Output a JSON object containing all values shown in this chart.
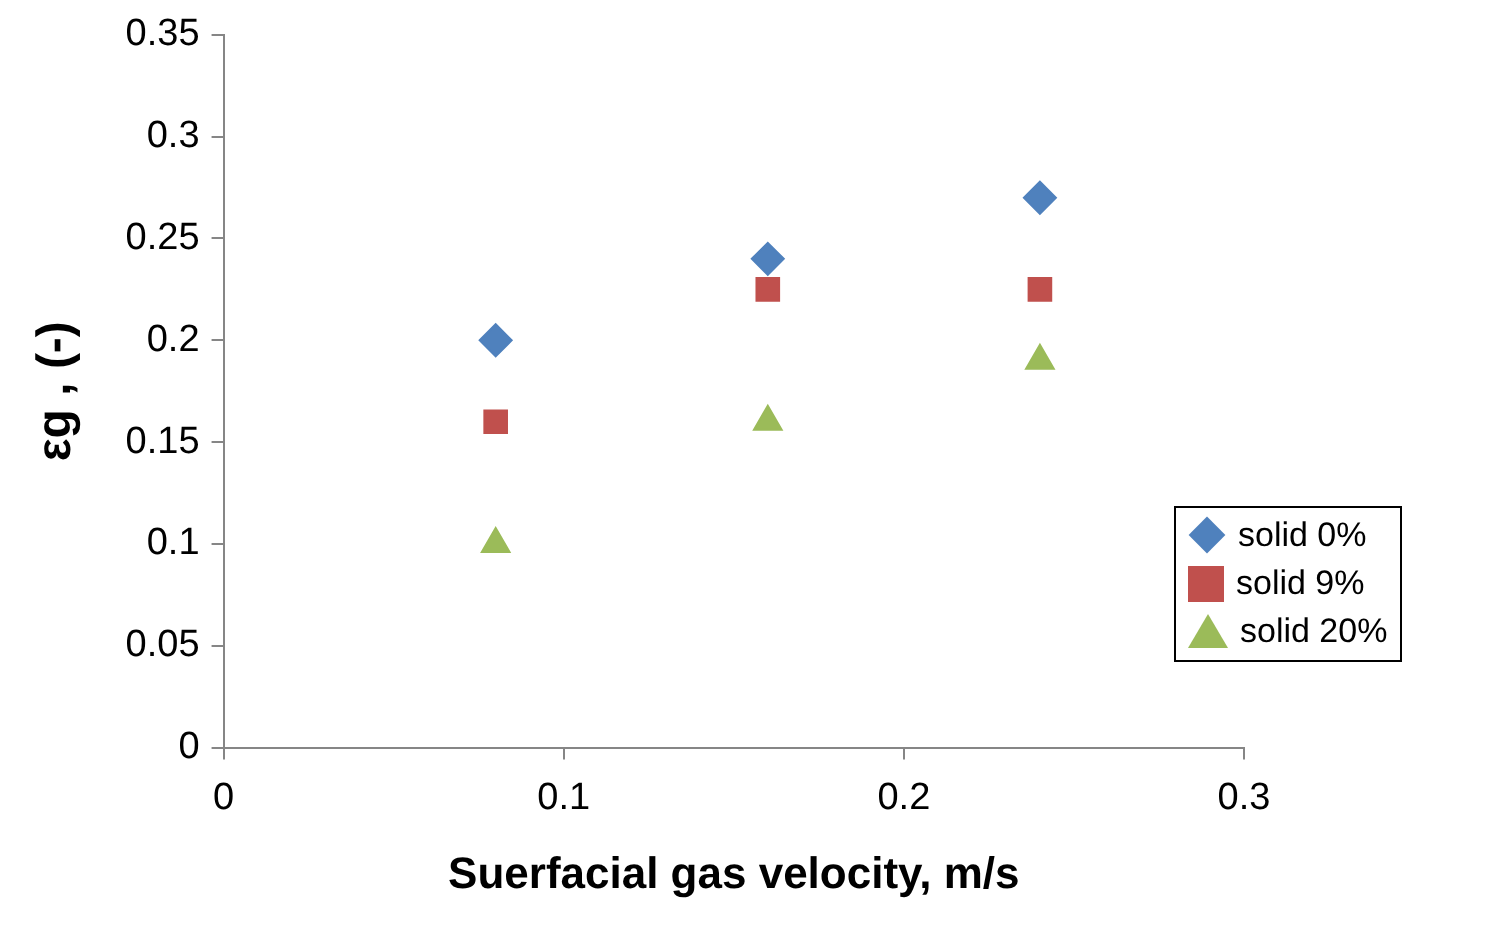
{
  "chart_data": {
    "type": "scatter",
    "xlabel": "Suerfacial gas velocity, m/s",
    "ylabel": "εg , (-)",
    "x": [
      0.08,
      0.16,
      0.24
    ],
    "series": [
      {
        "name": "solid 0%",
        "color": "#4f81bd",
        "marker": "diamond",
        "values": [
          0.2,
          0.24,
          0.27
        ]
      },
      {
        "name": "solid 9%",
        "color": "#c0504d",
        "marker": "square",
        "values": [
          0.16,
          0.225,
          0.225
        ]
      },
      {
        "name": "solid 20%",
        "color": "#9bbb59",
        "marker": "triangle",
        "values": [
          0.1,
          0.16,
          0.19
        ]
      }
    ],
    "xlim": [
      0,
      0.3
    ],
    "xticks": [
      0,
      0.1,
      0.2,
      0.3
    ],
    "ylim": [
      0,
      0.35
    ],
    "yticks": [
      0,
      0.05,
      0.1,
      0.15,
      0.2,
      0.25,
      0.3,
      0.35
    ],
    "grid": false,
    "legend": "right"
  }
}
